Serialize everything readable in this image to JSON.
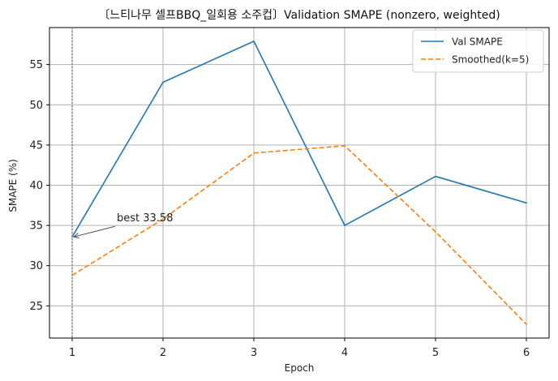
{
  "chart_data": {
    "type": "line",
    "title": "〔느티나무 셀프BBQ_일회용 소주컵〕Validation SMAPE (nonzero, weighted)",
    "xlabel": "Epoch",
    "ylabel": "SMAPE (%)",
    "x": [
      1,
      2,
      3,
      4,
      5,
      6
    ],
    "xlim": [
      0.75,
      6.25
    ],
    "ylim": [
      21.0,
      59.6
    ],
    "xticks": [
      1,
      2,
      3,
      4,
      5,
      6
    ],
    "yticks": [
      25,
      30,
      35,
      40,
      45,
      50,
      55
    ],
    "grid": true,
    "legend_position": "top-right",
    "series": [
      {
        "name": "Val SMAPE",
        "values": [
          33.58,
          52.8,
          57.9,
          35.0,
          41.1,
          37.8
        ],
        "color": "#1f77b4",
        "style": "solid"
      },
      {
        "name": "Smoothed(k=5)",
        "values": [
          28.8,
          35.8,
          44.0,
          44.9,
          34.2,
          22.7
        ],
        "color": "#ff7f0e",
        "style": "dashed"
      }
    ],
    "best_marker_x": 1,
    "annotation": {
      "text": "best 33.58",
      "x": 1,
      "y": 33.58
    }
  }
}
